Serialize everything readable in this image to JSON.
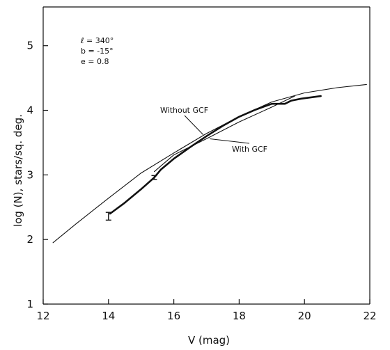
{
  "chart_data": {
    "type": "line",
    "title": "",
    "xlabel": "V (mag)",
    "ylabel": "log (N), stars/sq. deg.",
    "xlim": [
      12,
      22
    ],
    "ylim": [
      1,
      5.6
    ],
    "xticks": [
      12,
      14,
      16,
      18,
      20,
      22
    ],
    "yticks": [
      1,
      2,
      3,
      4,
      5
    ],
    "xtick_labels": [
      "12",
      "14",
      "16",
      "18",
      "20",
      "22"
    ],
    "ytick_labels": [
      "1",
      "2",
      "3",
      "4",
      "5"
    ],
    "grid": false,
    "parameters": [
      "ℓ = 340°",
      "b = -15°",
      "e = 0.8"
    ],
    "series": [
      {
        "name": "Without GCF",
        "style": "thin",
        "x": [
          12.3,
          13.0,
          14.0,
          15.0,
          16.0,
          17.0,
          18.0,
          19.0,
          20.0,
          21.0,
          21.9
        ],
        "y": [
          1.95,
          2.24,
          2.64,
          3.03,
          3.34,
          3.64,
          3.9,
          4.13,
          4.27,
          4.35,
          4.4
        ]
      },
      {
        "name": "With GCF",
        "style": "thin",
        "x": [
          15.4,
          16.0,
          17.0,
          18.0,
          19.0,
          19.7
        ],
        "y": [
          3.05,
          3.31,
          3.56,
          3.82,
          4.05,
          4.22
        ]
      },
      {
        "name": "",
        "style": "observed",
        "x": [
          14.05,
          14.5,
          15.0,
          15.4,
          15.6,
          16.0,
          16.5,
          17.0,
          17.5,
          18.0,
          18.5,
          19.0,
          19.4,
          19.6,
          19.9,
          20.5
        ],
        "y": [
          2.4,
          2.57,
          2.78,
          2.96,
          3.08,
          3.25,
          3.43,
          3.6,
          3.76,
          3.9,
          4.01,
          4.1,
          4.1,
          4.15,
          4.18,
          4.22
        ]
      }
    ],
    "error_bars": [
      {
        "x": 14.0,
        "y": 2.36,
        "err": 0.06
      },
      {
        "x": 15.4,
        "y": 2.96,
        "err": 0.03
      }
    ],
    "annotations": [
      {
        "text": "Without GCF",
        "target": "Without GCF"
      },
      {
        "text": "With GCF",
        "target": "With GCF"
      }
    ]
  }
}
